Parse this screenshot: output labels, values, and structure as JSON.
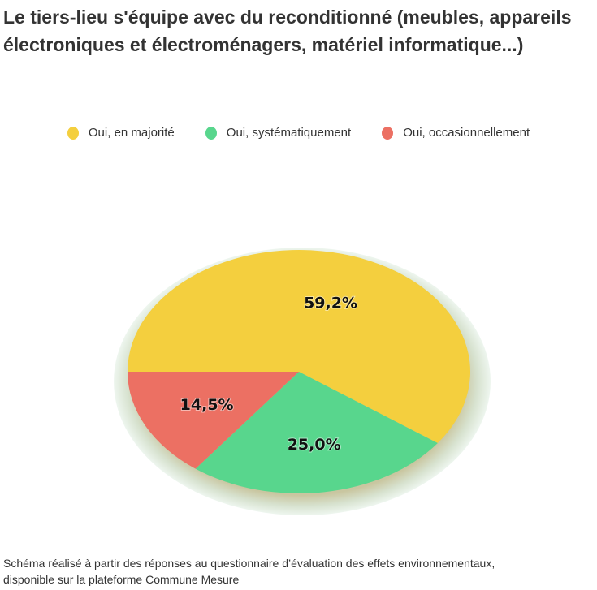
{
  "title": "Le tiers-lieu s'équipe avec du reconditionné (meubles, appareils électroniques et électroménagers, matériel informatique...)",
  "caption_lines": [
    "Schéma réalisé à partir des réponses au questionnaire d’évaluation des effets environnementaux,",
    "disponible sur la plateforme Commune Mesure"
  ],
  "chart_data": {
    "type": "pie",
    "title": "Le tiers-lieu s'équipe avec du reconditionné (meubles, appareils électroniques et électroménagers, matériel informatique...)",
    "legend_position": "top",
    "categories": [
      "Oui, en majorité",
      "Oui, systématiquement",
      "Oui, occasionnellement"
    ],
    "values": [
      59.2,
      25.0,
      14.5
    ],
    "labels": [
      "59,2%",
      "25,0%",
      "14,5%"
    ],
    "colors": [
      "#f4cf3e",
      "#58d68d",
      "#ec7063"
    ]
  }
}
